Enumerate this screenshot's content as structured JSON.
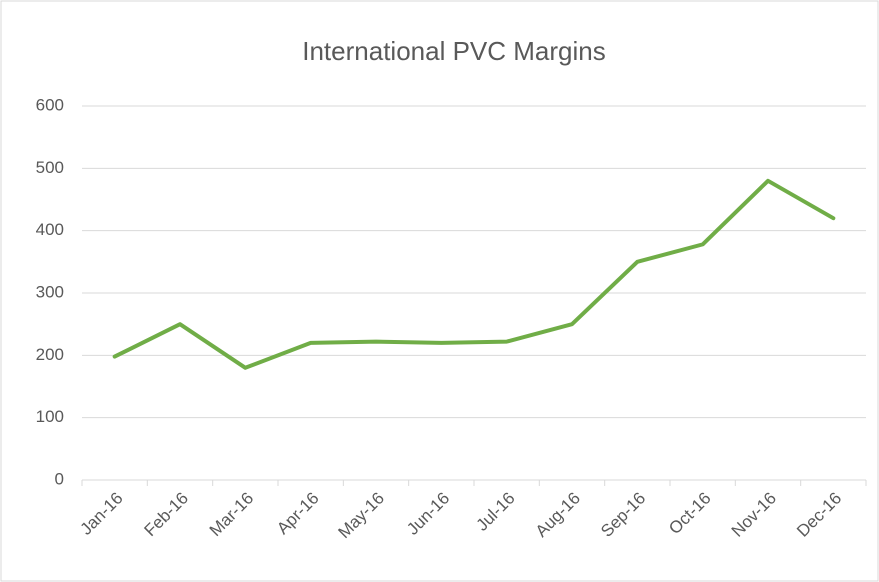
{
  "chart_data": {
    "type": "line",
    "title": "International PVC Margins",
    "categories": [
      "Jan-16",
      "Feb-16",
      "Mar-16",
      "Apr-16",
      "May-16",
      "Jun-16",
      "Jul-16",
      "Aug-16",
      "Sep-16",
      "Oct-16",
      "Nov-16",
      "Dec-16"
    ],
    "series": [
      {
        "name": "International PVC Margins",
        "color": "#70ad47",
        "values": [
          198,
          250,
          180,
          220,
          222,
          220,
          222,
          250,
          350,
          378,
          480,
          420
        ]
      }
    ],
    "ylim": [
      0,
      600
    ],
    "yticks": [
      0,
      100,
      200,
      300,
      400,
      500,
      600
    ],
    "grid": true
  }
}
